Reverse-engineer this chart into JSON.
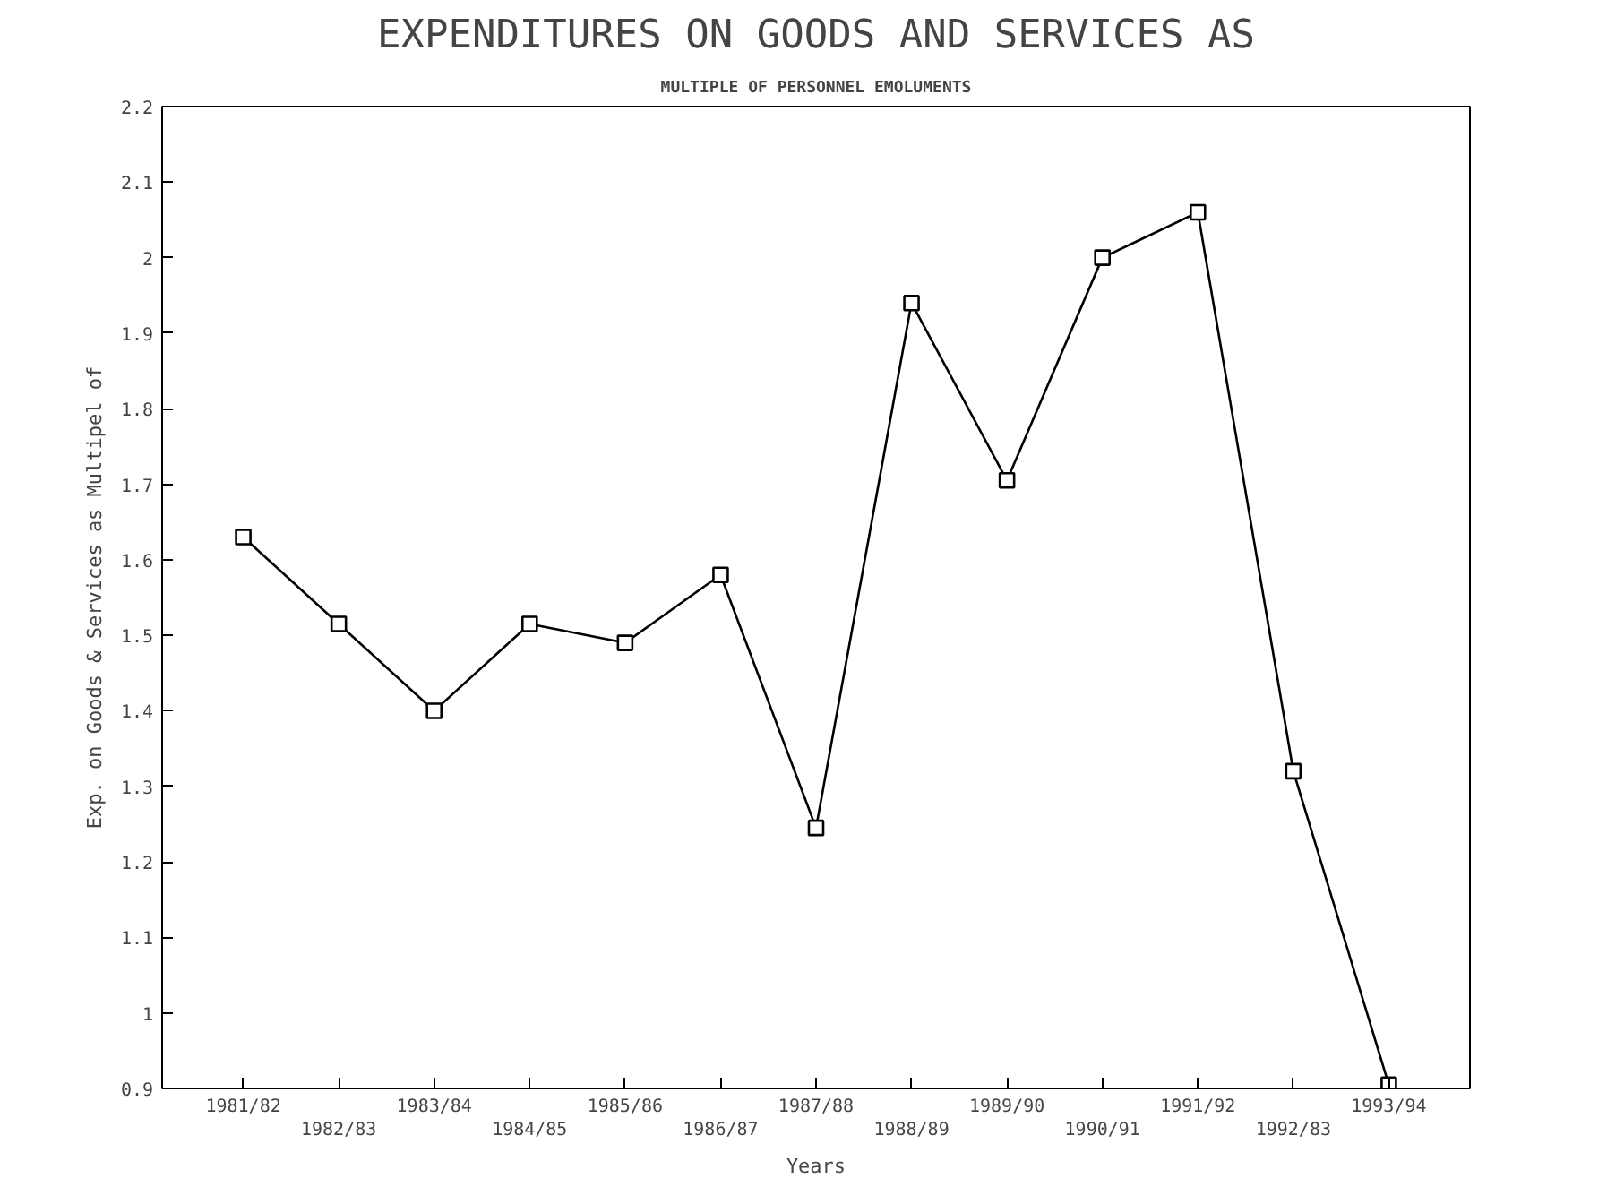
{
  "chart_data": {
    "type": "line",
    "title": "EXPENDITURES ON GOODS AND SERVICES AS",
    "subtitle": "MULTIPLE OF PERSONNEL EMOLUMENTS",
    "xlabel": "Years",
    "ylabel": "Exp. on Goods & Services as Multipel of",
    "categories": [
      "1981/82",
      "1982/83",
      "1983/84",
      "1984/85",
      "1985/86",
      "1986/87",
      "1987/88",
      "1988/89",
      "1989/90",
      "1990/91",
      "1991/92",
      "1992/83",
      "1993/94"
    ],
    "series": [
      {
        "color": "#000000",
        "values": [
          1.63,
          1.515,
          1.4,
          1.515,
          1.49,
          1.58,
          1.245,
          1.94,
          1.705,
          2.0,
          2.06,
          1.32,
          0.905
        ]
      }
    ],
    "ylim": [
      0.9,
      2.2
    ],
    "yticks": [
      {
        "value": 0.9,
        "label": "0.9"
      },
      {
        "value": 1.0,
        "label": "1"
      },
      1.1,
      1.2,
      1.3,
      1.4,
      1.5,
      1.6,
      1.7,
      1.8,
      1.9,
      {
        "value": 2.0,
        "label": "2"
      },
      2.1,
      2.2
    ],
    "marker": "square",
    "line_style": "solid",
    "grid": false
  }
}
